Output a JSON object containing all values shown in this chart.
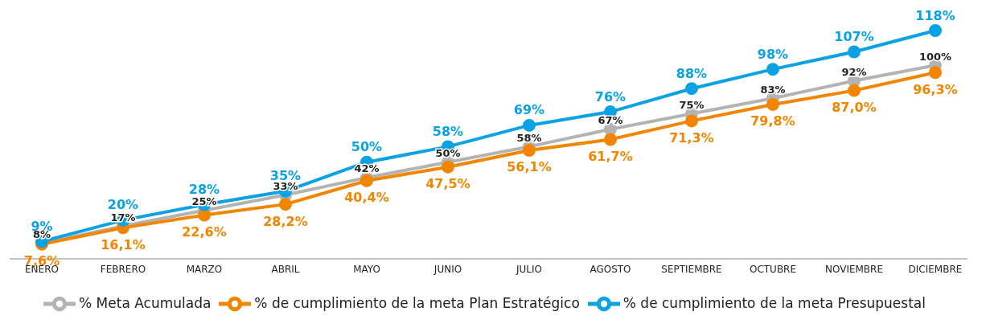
{
  "chart_data": {
    "type": "line",
    "categories": [
      "ENERO",
      "FEBRERO",
      "MARZO",
      "ABRIL",
      "MAYO",
      "JUNIO",
      "JULIO",
      "AGOSTO",
      "SEPTIEMBRE",
      "OCTUBRE",
      "NOVIEMBRE",
      "DICIEMBRE"
    ],
    "series": [
      {
        "name": "% Meta Acumulada",
        "color": "#b3b3b3",
        "values": [
          8,
          17,
          25,
          33,
          42,
          50,
          58,
          67,
          75,
          83,
          92,
          100
        ],
        "value_labels": [
          "8%",
          "17%",
          "25%",
          "33%",
          "42%",
          "50%",
          "58%",
          "67%",
          "75%",
          "83%",
          "92%",
          "100%"
        ]
      },
      {
        "name": "% de cumplimiento de la meta Plan Estratégico",
        "color": "#f28500",
        "values": [
          7.6,
          16.1,
          22.6,
          28.2,
          40.4,
          47.5,
          56.1,
          61.7,
          71.3,
          79.8,
          87.0,
          96.3
        ],
        "value_labels": [
          "7,6%",
          "16,1%",
          "22,6%",
          "28,2%",
          "40,4%",
          "47,5%",
          "56,1%",
          "61,7%",
          "71,3%",
          "79,8%",
          "87,0%",
          "96,3%"
        ]
      },
      {
        "name": "% de cumplimiento de la meta Presupuestal",
        "color": "#0aa2e2",
        "values": [
          9,
          20,
          28,
          35,
          50,
          58,
          69,
          76,
          88,
          98,
          107,
          118
        ],
        "value_labels": [
          "9%",
          "20%",
          "28%",
          "35%",
          "50%",
          "58%",
          "69%",
          "76%",
          "88%",
          "98%",
          "107%",
          "118%"
        ]
      }
    ],
    "marker": "circle",
    "line_style": "solid",
    "legend": "bottom",
    "grid": false,
    "tick_labels": "x"
  }
}
